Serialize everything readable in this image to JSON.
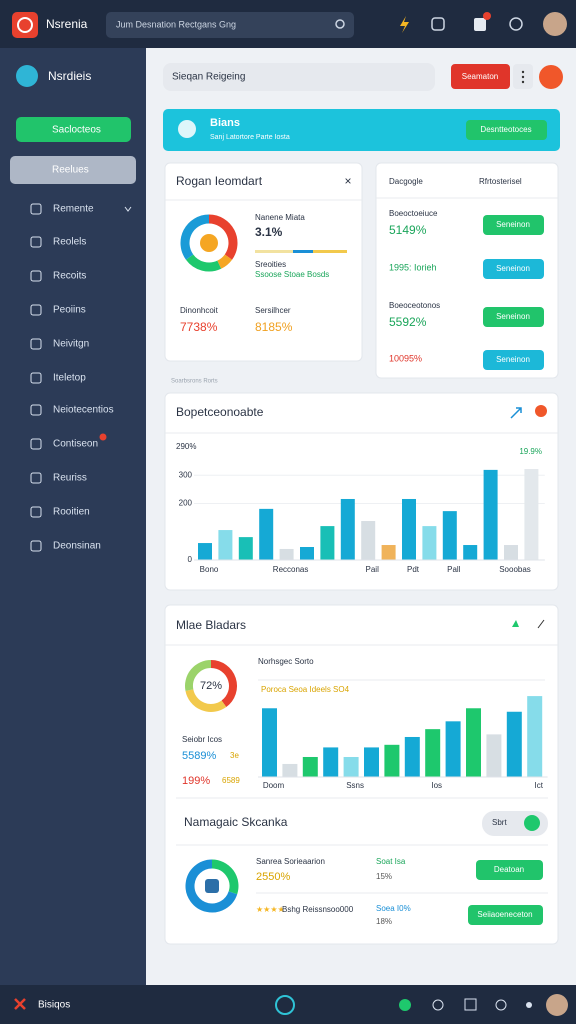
{
  "top_bar": {
    "brand": "Nsrenia",
    "search_placeholder": "Jum Desnation Rectgans Gng"
  },
  "sidebar": {
    "brand": "Nsrdieis",
    "primary_button": "Saclocteos",
    "active_item": "Reelues",
    "items": [
      "Remente",
      "Reolels",
      "Recoits",
      "Peoiins",
      "Neivitgn",
      "Iteletop",
      "Neiotecentios",
      "Contiseon",
      "Reuriss",
      "Rooitien",
      "Deonsinan"
    ]
  },
  "toolbar": {
    "search_placeholder": "Sieqan Reigeing",
    "button": "Seamaton"
  },
  "banner": {
    "title": "Bians",
    "subtitle": "Sanj Latortore Parte Iosta",
    "button": "Desntteotoces"
  },
  "summary_card": {
    "title": "Rogan Ieomdart",
    "legend_title": "Nanene Miata",
    "metric": "3.1%",
    "sub_label": "Sreoities",
    "sub_note": "Ssoose Stoae Bosds",
    "stats": [
      {
        "label": "Dinonhcoit",
        "value": "7738%"
      },
      {
        "label": "Sersilhcer",
        "value": "8185%"
      }
    ]
  },
  "side_card": {
    "title": "Dacgogle",
    "filter": "Rfrtosterisel",
    "rows": [
      {
        "label": "Boeoctoeiuce",
        "value": "5149%",
        "button": "Seneinon"
      },
      {
        "value": "1995: Iorieh",
        "button": "Seneinon"
      },
      {
        "label": "Boeoceotonos",
        "value": "5592%",
        "button": "Seneinon"
      },
      {
        "value": "10095%",
        "button": "Seneinon"
      }
    ]
  },
  "caption": "Soarbsrons Rorts",
  "detail_card": {
    "title": "Mlae Bladars",
    "donut_caption": "Norhsgec Sorto",
    "highlight": "Poroca Seoa Ideels SO4",
    "stats_label": "Seiobr Icos",
    "stat_a": "5589%",
    "stat_a_note": "3e",
    "stat_b": "199%",
    "stat_b_note": "6589",
    "section_title": "Namagaic Skcanka",
    "toggle": "Sbrt",
    "rows": [
      {
        "title": "Sanrea Sorieaarion",
        "value": "2550%",
        "side": "Soat Isa",
        "side_value": "15%",
        "button": "Deatoan"
      },
      {
        "title": "Bshg Reissnsoo000",
        "side": "Soea I0%",
        "side_value": "18%",
        "button": "Seiiaoeneceton"
      }
    ]
  },
  "bottom_bar": {
    "label": "Bisiqos"
  },
  "chart_data": [
    {
      "type": "bar",
      "title": "Bopetceonoabte",
      "top_label": "290%",
      "side_label": "19.9%",
      "categories": [
        "Bono",
        null,
        null,
        null,
        "Recconas",
        null,
        null,
        null,
        "Pail",
        null,
        "Pdt",
        null,
        "Pall",
        null,
        null,
        "Sooobas",
        null
      ],
      "values": [
        60,
        106,
        81,
        181,
        39,
        46,
        120,
        216,
        138,
        53,
        216,
        120,
        173,
        53,
        319,
        53,
        322
      ],
      "colors": [
        "#15a9d5",
        "#86dcea",
        "#19bfb6",
        "#15a9d5",
        "#d7dee3",
        "#15a9d5",
        "#19bfb6",
        "#15a9d5",
        "#d7dee3",
        "#f0b35a",
        "#15a9d5",
        "#86dcea",
        "#15a9d5",
        "#15a9d5",
        "#15a9d5",
        "#d7dee3",
        "#e3e8ec"
      ],
      "ylim": [
        0,
        400
      ],
      "yticks": [
        0,
        200,
        300
      ]
    },
    {
      "type": "bar",
      "categories": [
        "Doom",
        null,
        null,
        null,
        "Ssns",
        null,
        null,
        null,
        "Ios",
        null,
        null,
        null,
        null,
        "Ict"
      ],
      "values": [
        79,
        15,
        23,
        34,
        23,
        34,
        37,
        46,
        55,
        64,
        79,
        49,
        75,
        93
      ],
      "colors": [
        "#15a9d5",
        "#d7dee3",
        "#1ec86d",
        "#15a9d5",
        "#86dcea",
        "#15a9d5",
        "#1ec86d",
        "#15a9d5",
        "#1ec86d",
        "#15a9d5",
        "#1ec86d",
        "#d7dee3",
        "#15a9d5",
        "#86dcea"
      ],
      "ylim": [
        0,
        100
      ]
    },
    {
      "type": "donut",
      "values": [
        35,
        8,
        22,
        35
      ],
      "colors": [
        "#e8412e",
        "#f5a623",
        "#1ec86d",
        "#1a9bd7"
      ]
    },
    {
      "type": "donut",
      "center_label": "72%",
      "values": [
        40,
        32,
        28
      ],
      "colors": [
        "#e8412e",
        "#f2c94c",
        "#9bd36a"
      ]
    },
    {
      "type": "donut",
      "values": [
        30,
        70
      ],
      "colors": [
        "#1ec86d",
        "#1a8fd6"
      ]
    }
  ]
}
